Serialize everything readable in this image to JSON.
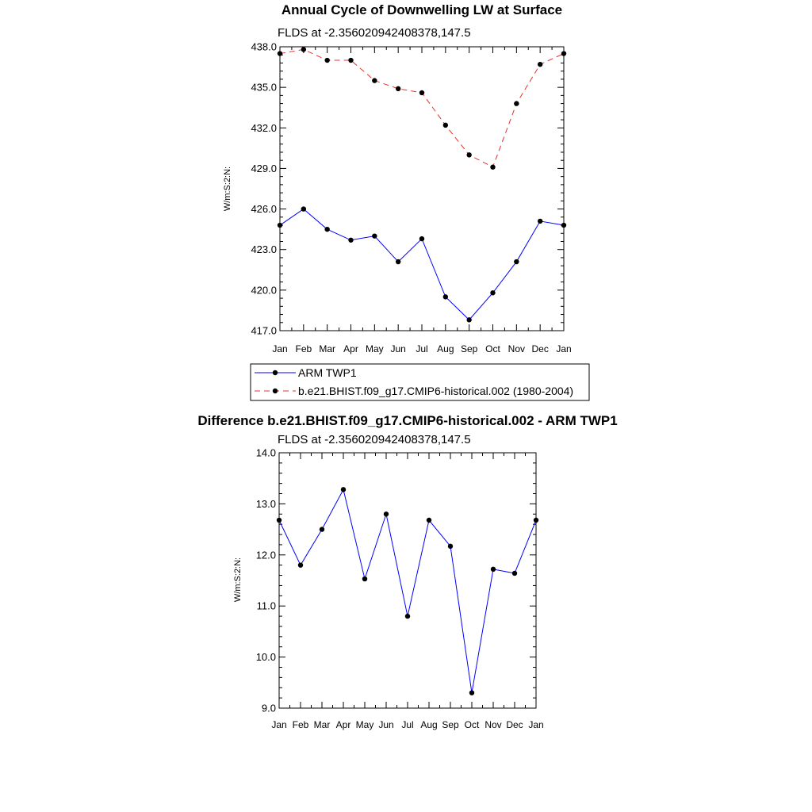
{
  "chart_data": [
    {
      "type": "line",
      "title": "Annual Cycle of Downwelling LW at Surface",
      "subtitle": "FLDS at -2.356020942408378,147.5",
      "ylabel": "W/m:S:2:N:",
      "xlabel": "",
      "categories": [
        "Jan",
        "Feb",
        "Mar",
        "Apr",
        "May",
        "Jun",
        "Jul",
        "Aug",
        "Sep",
        "Oct",
        "Nov",
        "Dec",
        "Jan"
      ],
      "ylim": [
        417.0,
        438.0
      ],
      "yticks": [
        "417.0",
        "420.0",
        "423.0",
        "426.0",
        "429.0",
        "432.0",
        "435.0",
        "438.0"
      ],
      "series": [
        {
          "name": "ARM TWP1",
          "color": "#0000ff",
          "dash": "solid",
          "values": [
            424.8,
            426.0,
            424.5,
            423.7,
            424.0,
            422.1,
            423.8,
            419.5,
            417.8,
            419.8,
            422.1,
            425.1,
            424.8
          ]
        },
        {
          "name": "b.e21.BHIST.f09_g17.CMIP6-historical.002 (1980-2004)",
          "color": "#e8302e",
          "dash": "dashed",
          "values": [
            437.5,
            437.8,
            437.0,
            437.0,
            435.5,
            434.9,
            434.6,
            432.2,
            430.0,
            429.1,
            433.8,
            436.7,
            437.5
          ]
        }
      ]
    },
    {
      "type": "line",
      "title": "Difference b.e21.BHIST.f09_g17.CMIP6-historical.002 - ARM TWP1",
      "subtitle": "FLDS at -2.356020942408378,147.5",
      "ylabel": "W/m:S:2:N:",
      "xlabel": "",
      "categories": [
        "Jan",
        "Feb",
        "Mar",
        "Apr",
        "May",
        "Jun",
        "Jul",
        "Aug",
        "Sep",
        "Oct",
        "Nov",
        "Dec",
        "Jan"
      ],
      "ylim": [
        9.0,
        14.0
      ],
      "yticks": [
        "9.0",
        "10.0",
        "11.0",
        "12.0",
        "13.0",
        "14.0"
      ],
      "series": [
        {
          "name": "Difference",
          "color": "#0000ff",
          "dash": "solid",
          "values": [
            12.68,
            11.8,
            12.5,
            13.28,
            11.53,
            12.8,
            10.8,
            12.68,
            12.17,
            9.3,
            11.72,
            11.64,
            12.68
          ]
        }
      ]
    }
  ]
}
